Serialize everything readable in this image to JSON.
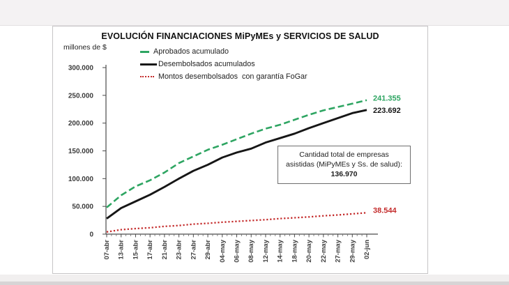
{
  "chart": {
    "title": "EVOLUCIÓN FINANCIACIONES MiPyMEs y SERVICIOS DE SALUD",
    "y_axis_unit_label": "millones de $",
    "annotation": {
      "line1": "Cantidad total de empresas",
      "line2": "asistidas (MiPyMEs y Ss. de salud):",
      "value": "136.970"
    }
  },
  "chart_data": {
    "type": "line",
    "title": "EVOLUCIÓN FINANCIACIONES MiPyMEs y SERVICIOS DE SALUD",
    "xlabel": "",
    "ylabel": "millones de $",
    "ylim": [
      0,
      300000
    ],
    "grid": false,
    "legend_position": "top-left-inside",
    "y_tick_labels": [
      "0",
      "50.000",
      "100.000",
      "150.000",
      "200.000",
      "250.000",
      "300.000"
    ],
    "categories": [
      "07-abr",
      "13-abr",
      "15-abr",
      "17-abr",
      "21-abr",
      "23-abr",
      "27-abr",
      "29-abr",
      "04-may",
      "06-may",
      "08-may",
      "12-may",
      "14-may",
      "18-may",
      "20-may",
      "22-may",
      "27-may",
      "29-may",
      "02-jun"
    ],
    "series": [
      {
        "name": "Aprobados acumulado",
        "color": "#2ea562",
        "style": "dashed",
        "end_label": "241.355",
        "values": [
          48000,
          70000,
          86000,
          97000,
          111000,
          128000,
          140000,
          152000,
          161000,
          171000,
          181000,
          190000,
          197000,
          206000,
          215000,
          223000,
          229000,
          235000,
          241355
        ]
      },
      {
        "name": "Desembolsados acumulados",
        "color": "#161616",
        "style": "solid",
        "end_label": "223.692",
        "values": [
          28000,
          47000,
          59000,
          71000,
          85000,
          100000,
          114000,
          125000,
          138000,
          147000,
          154000,
          165000,
          173000,
          181000,
          191000,
          200000,
          209000,
          218000,
          223692
        ]
      },
      {
        "name": "Montos desembolsados  con garantía FoGar",
        "color": "#c42b2b",
        "style": "dotted",
        "end_label": "38.544",
        "values": [
          4000,
          8000,
          10000,
          11500,
          14000,
          15500,
          18000,
          19500,
          21500,
          23000,
          24500,
          26000,
          28000,
          29500,
          31000,
          33000,
          34500,
          36500,
          38544
        ]
      }
    ]
  }
}
